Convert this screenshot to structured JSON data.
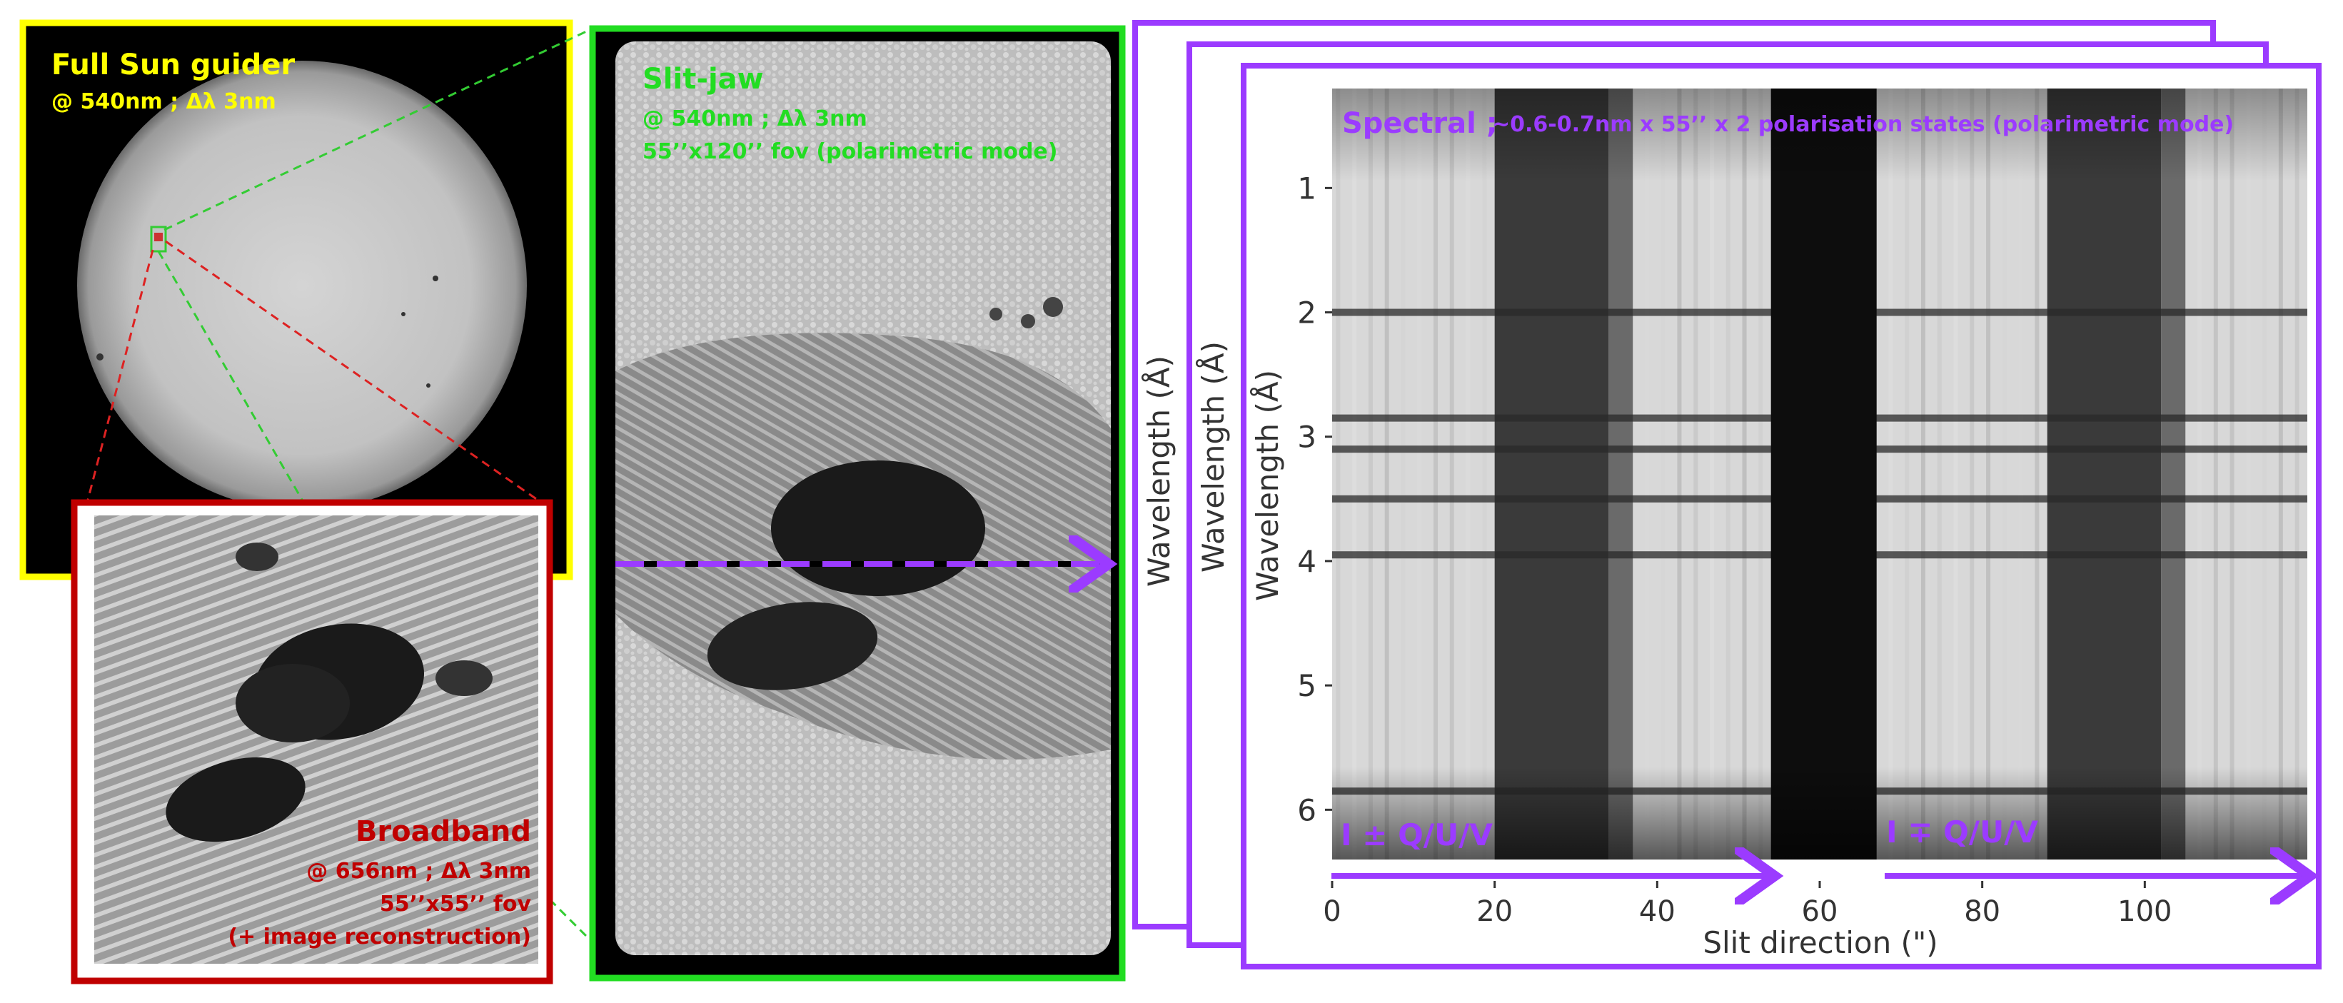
{
  "colors": {
    "guider": "#FFFF00",
    "slitjaw": "#22DD22",
    "broadband": "#C00000",
    "spectral": "#9B3BFF",
    "connector_green": "#33CC33",
    "connector_red": "#DD2222"
  },
  "guider": {
    "title": "Full Sun guider",
    "subtitle": "@ 540nm ; Δλ 3nm"
  },
  "slitjaw": {
    "title": "Slit-jaw",
    "line1": "@ 540nm ; Δλ 3nm",
    "line2": "55’’x120’’ fov (polarimetric mode)"
  },
  "broadband": {
    "title": "Broadband",
    "line1": "@ 656nm ; Δλ 3nm",
    "line2": "55’’x55’’ fov",
    "line3": "(+ image reconstruction)"
  },
  "spectral": {
    "title_main": "Spectral ;",
    "title_rest": "~0.6-0.7nm x 55’’ x 2 polarisation states (polarimetric mode)",
    "state_left": "I ± Q/U/V",
    "state_right": "I ∓ Q/U/V",
    "ylabel": "Wavelength (Å)",
    "xlabel": "Slit direction (\")",
    "xticks": [
      "0",
      "20",
      "40",
      "60",
      "80",
      "100"
    ],
    "yticks": [
      "1",
      "2",
      "3",
      "4",
      "5",
      "6"
    ]
  },
  "chart_data": {
    "type": "heatmap",
    "xlabel": "Slit direction (\")",
    "ylabel": "Wavelength (Å)",
    "xlim": [
      0,
      120
    ],
    "ylim": [
      6.4,
      0.2
    ],
    "xticks": [
      0,
      20,
      40,
      60,
      80,
      100
    ],
    "yticks": [
      1,
      2,
      3,
      4,
      5,
      6
    ],
    "absorption_lines": [
      2.0,
      2.85,
      3.1,
      3.5,
      3.95,
      5.85
    ],
    "dark_gap": [
      54,
      67
    ],
    "dark_bands": [
      [
        20,
        34
      ],
      [
        88,
        102
      ]
    ]
  }
}
